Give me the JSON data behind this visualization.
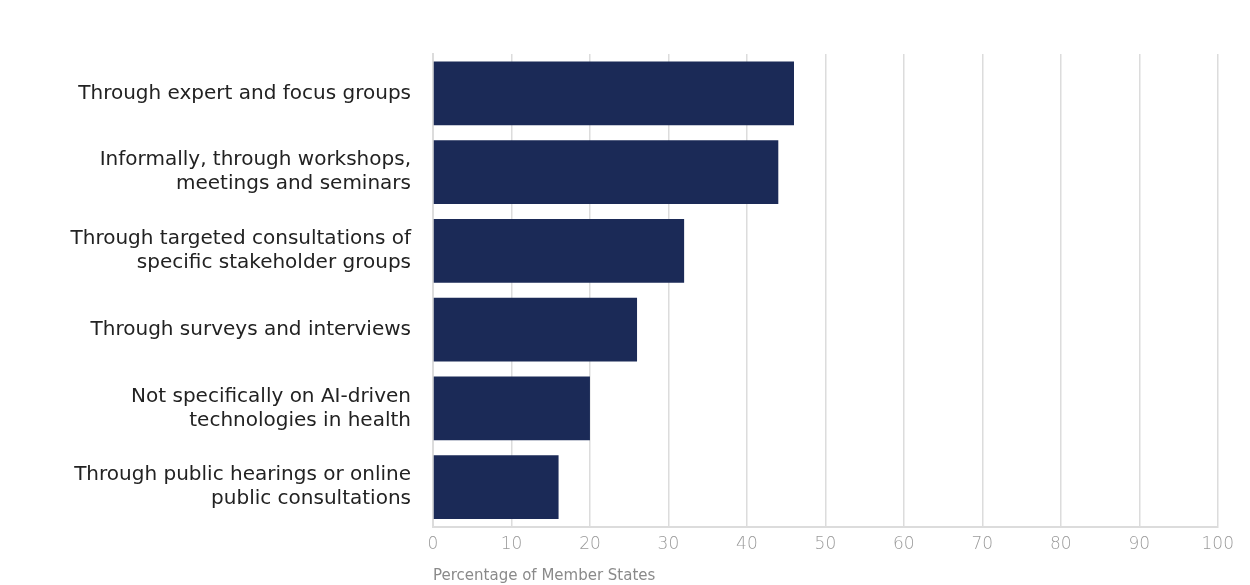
{
  "chart_data": {
    "type": "bar",
    "orientation": "horizontal",
    "xlabel": "Percentage of Member States",
    "categories": [
      "Through expert and focus groups",
      "Informally, through workshops, meetings and seminars",
      "Through targeted consultations of specific stakeholder groups",
      "Through surveys and interviews",
      "Not specifically on AI-driven technologies in health",
      "Through public hearings or online public consultations"
    ],
    "values": [
      46,
      44,
      32,
      26,
      20,
      16
    ],
    "color": "#1b2a57",
    "xlim": [
      0,
      100
    ],
    "xticks": [
      0,
      10,
      20,
      30,
      40,
      50,
      60,
      70,
      80,
      90,
      100
    ],
    "grid": "x",
    "legend": false
  }
}
